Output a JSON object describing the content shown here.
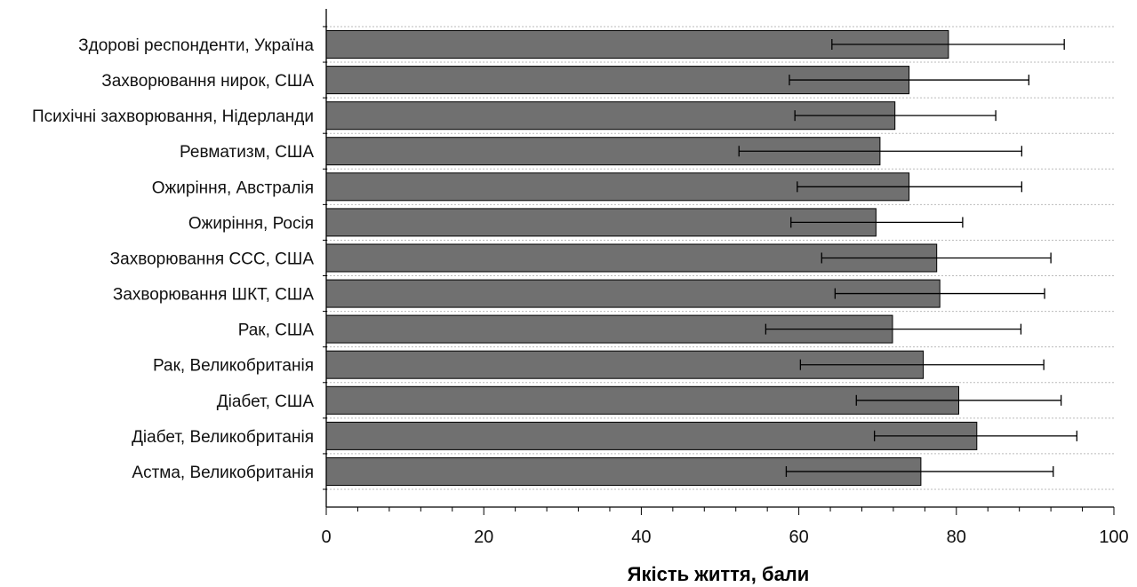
{
  "chart_data": {
    "type": "bar",
    "orientation": "horizontal",
    "categories": [
      "Здорові респонденти, Україна",
      "Захворювання нирок, США",
      "Психічні захворювання, Нідерланди",
      "Ревматизм, США",
      "Ожиріння, Австралія",
      "Ожиріння, Росія",
      "Захворювання ССС, США",
      "Захворювання ШКТ, США",
      "Рак, США",
      "Рак, Великобританія",
      "Діабет, США",
      "Діабет, Великобританія",
      "Астма, Великобританія"
    ],
    "values": [
      79.0,
      74.0,
      72.2,
      70.3,
      74.0,
      69.8,
      77.5,
      77.9,
      71.9,
      75.8,
      80.3,
      82.6,
      75.5
    ],
    "error_bars": {
      "low": [
        64.2,
        58.8,
        59.5,
        52.4,
        59.8,
        59.0,
        62.9,
        64.6,
        55.8,
        60.2,
        67.3,
        69.6,
        58.4
      ],
      "high": [
        93.7,
        89.2,
        85.0,
        88.3,
        88.3,
        80.8,
        92.0,
        91.2,
        88.2,
        91.1,
        93.3,
        95.3,
        92.3
      ]
    },
    "xlabel": "Якість життя, бали",
    "ylabel": "",
    "xlim": [
      0,
      100
    ],
    "xticks": [
      "0",
      "20",
      "40",
      "60",
      "80",
      "100"
    ],
    "grid": "horizontal-dotted",
    "colors": {
      "bar_fill": "#707070",
      "bar_stroke": "#000000",
      "error_bar": "#000000",
      "grid": "#bbbbbb",
      "axis": "#000000"
    }
  }
}
